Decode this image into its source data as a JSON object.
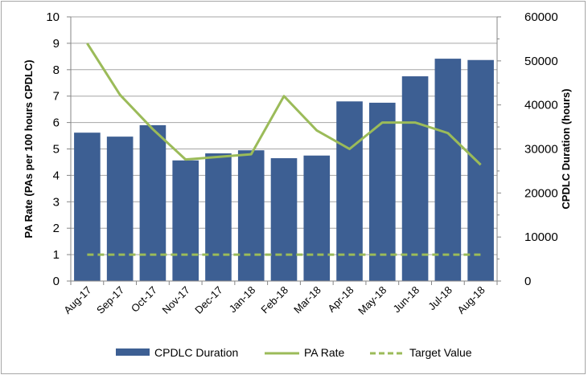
{
  "chart_data": {
    "type": "bar",
    "title": "",
    "categories": [
      "Aug-17",
      "Sep-17",
      "Oct-17",
      "Nov-17",
      "Dec-17",
      "Jan-18",
      "Feb-18",
      "Mar-18",
      "Apr-18",
      "May-18",
      "Jun-18",
      "Jul-18",
      "Aug-18"
    ],
    "series": [
      {
        "name": "CPDLC Duration",
        "type": "bar",
        "axis": "right",
        "color": "#3d5f93",
        "values": [
          33700,
          32800,
          35400,
          27400,
          29000,
          29700,
          27900,
          28500,
          40800,
          40500,
          46500,
          50500,
          50200
        ]
      },
      {
        "name": "PA Rate",
        "type": "line",
        "axis": "left",
        "color": "#9bbb59",
        "values": [
          9.0,
          7.05,
          5.75,
          4.6,
          4.7,
          4.8,
          7.0,
          5.7,
          5.0,
          6.0,
          6.0,
          5.6,
          4.4
        ]
      },
      {
        "name": "Target Value",
        "type": "line",
        "dashed": true,
        "axis": "left",
        "color": "#9bbb59",
        "values": [
          1,
          1,
          1,
          1,
          1,
          1,
          1,
          1,
          1,
          1,
          1,
          1,
          1
        ]
      }
    ],
    "ylabel": "PA Rate (PAs per 100 hours CPDLC)",
    "y2label": "CPDLC Duration (hours)",
    "ylim": [
      0,
      10
    ],
    "y2lim": [
      0,
      60000
    ],
    "yticks": [
      "0",
      "1",
      "2",
      "3",
      "4",
      "5",
      "6",
      "7",
      "8",
      "9",
      "10"
    ],
    "y2ticks": [
      "0",
      "10000",
      "20000",
      "30000",
      "40000",
      "50000",
      "60000"
    ],
    "grid": true,
    "legend": "bottom"
  }
}
